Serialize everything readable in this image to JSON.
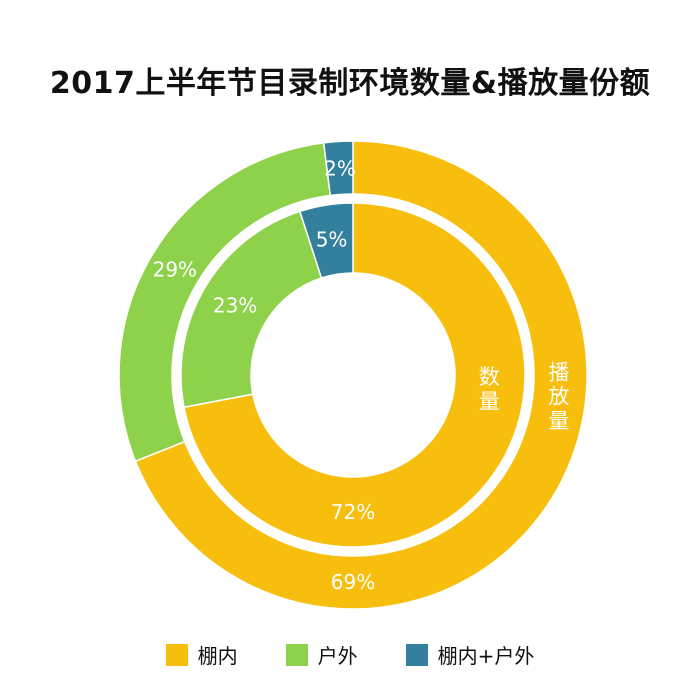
{
  "chart_data": {
    "type": "pie",
    "variant": "nested-donut",
    "title": "2017上半年节目录制环境数量&播放量份额",
    "categories": [
      "棚内",
      "户外",
      "棚内+户外"
    ],
    "colors": [
      "#F7BE0E",
      "#8ED14A",
      "#33809E"
    ],
    "series": [
      {
        "name": "数量",
        "ring": "inner",
        "values": [
          72,
          23,
          5
        ],
        "labels": [
          "72%",
          "23%",
          "5%"
        ]
      },
      {
        "name": "播放量",
        "ring": "outer",
        "values": [
          69,
          29,
          2
        ],
        "labels": [
          "69%",
          "29%",
          "2%"
        ]
      }
    ],
    "legend_position": "bottom"
  }
}
